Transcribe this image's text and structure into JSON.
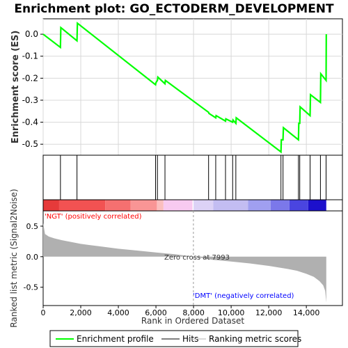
{
  "chart_data": {
    "type": "line",
    "title": "Enrichment plot: GO_ECTODERM_DEVELOPMENT",
    "top_panel": {
      "ylabel": "Enrichment score (ES)",
      "ylim": [
        -0.55,
        0.07
      ],
      "yticks": [
        0.0,
        -0.1,
        -0.2,
        -0.3,
        -0.4,
        -0.5
      ],
      "ytick_labels": [
        "0.0",
        "-0.1",
        "-0.2",
        "-0.3",
        "-0.4",
        "-0.5"
      ],
      "grid": true,
      "series": [
        {
          "name": "Enrichment profile",
          "color": "#00ff00",
          "x": [
            0,
            920,
            940,
            1800,
            1820,
            5980,
            6000,
            6080,
            6100,
            6480,
            6500,
            8800,
            8820,
            9180,
            9200,
            9700,
            9720,
            10080,
            10100,
            10250,
            10270,
            12650,
            12670,
            12760,
            12780,
            13580,
            13600,
            13650,
            13670,
            14200,
            14220,
            14750,
            14770,
            15050,
            15060
          ],
          "y": [
            0.0,
            -0.06,
            0.03,
            -0.03,
            0.05,
            -0.23,
            -0.22,
            -0.21,
            -0.195,
            -0.225,
            -0.21,
            -0.355,
            -0.36,
            -0.38,
            -0.37,
            -0.395,
            -0.385,
            -0.4,
            -0.39,
            -0.405,
            -0.38,
            -0.535,
            -0.48,
            -0.48,
            -0.425,
            -0.48,
            -0.405,
            -0.405,
            -0.33,
            -0.37,
            -0.275,
            -0.31,
            -0.18,
            -0.21,
            0.0
          ]
        }
      ]
    },
    "hits_panel": {
      "legend_name": "Hits",
      "hit_positions": [
        920,
        1800,
        5980,
        6080,
        6480,
        8800,
        9180,
        9700,
        10080,
        10250,
        12650,
        12760,
        13580,
        13650,
        14200,
        14750,
        15050
      ]
    },
    "heatmap_bar": {
      "segments": [
        {
          "start": 0,
          "end": 850,
          "color": "#e63a3a"
        },
        {
          "start": 850,
          "end": 3300,
          "color": "#f25252"
        },
        {
          "start": 3300,
          "end": 4650,
          "color": "#f57070"
        },
        {
          "start": 4650,
          "end": 6050,
          "color": "#f99595"
        },
        {
          "start": 6050,
          "end": 6400,
          "color": "#fbbebe"
        },
        {
          "start": 6400,
          "end": 7950,
          "color": "#f8caf0"
        },
        {
          "start": 7950,
          "end": 8000,
          "color": "#ffffff"
        },
        {
          "start": 8000,
          "end": 9050,
          "color": "#dcd2f6"
        },
        {
          "start": 9050,
          "end": 10900,
          "color": "#c3bdf2"
        },
        {
          "start": 10900,
          "end": 12100,
          "color": "#a09ff0"
        },
        {
          "start": 12100,
          "end": 13100,
          "color": "#7b78ea"
        },
        {
          "start": 13100,
          "end": 14100,
          "color": "#4a45e0"
        },
        {
          "start": 14100,
          "end": 15060,
          "color": "#1c10cc"
        }
      ]
    },
    "bottom_panel": {
      "ylabel": "Ranked list metric (Signal2Noise)",
      "xlabel": "Rank in Ordered Dataset",
      "ylim": [
        -0.8,
        0.75
      ],
      "yticks": [
        0.5,
        0.0,
        -0.5
      ],
      "ytick_labels": [
        "0.5",
        "0.0",
        "-0.5"
      ],
      "xlim": [
        0,
        15920
      ],
      "xticks": [
        0,
        2000,
        4000,
        6000,
        8000,
        10000,
        12000,
        14000
      ],
      "xtick_labels": [
        "0",
        "2,000",
        "4,000",
        "6,000",
        "8,000",
        "10,000",
        "12,000",
        "14,000"
      ],
      "fill_color": "#b0b0b0",
      "metric": {
        "x": [
          0,
          100,
          300,
          600,
          1000,
          1500,
          2000,
          3000,
          4000,
          5000,
          6000,
          7000,
          7993,
          9000,
          10000,
          11000,
          12000,
          13000,
          13500,
          14000,
          14400,
          14700,
          14900,
          15000,
          15060
        ],
        "y": [
          0.55,
          0.37,
          0.33,
          0.3,
          0.27,
          0.24,
          0.21,
          0.17,
          0.13,
          0.1,
          0.07,
          0.04,
          0.0,
          -0.05,
          -0.08,
          -0.11,
          -0.15,
          -0.2,
          -0.23,
          -0.28,
          -0.33,
          -0.4,
          -0.47,
          -0.56,
          -0.75
        ]
      },
      "zero_cross_label": "Zero cross at 7993",
      "zero_cross_rank": 7993,
      "pos_label": "'NGT' (positively correlated)",
      "neg_label": "'DMT' (negatively correlated)"
    },
    "legend": {
      "placement": "bottom",
      "entries": [
        {
          "label": "Enrichment profile",
          "color": "#00ff00"
        },
        {
          "label": "Hits",
          "color": "#000000"
        },
        {
          "label": "Ranking metric scores",
          "color": "#b0b0b0"
        }
      ]
    }
  }
}
